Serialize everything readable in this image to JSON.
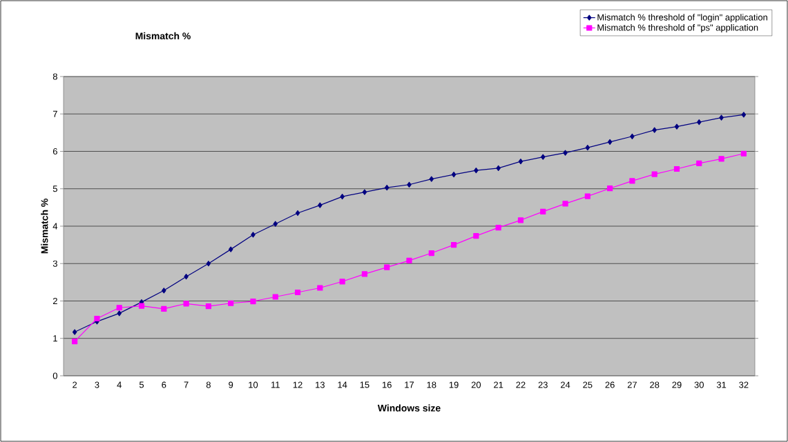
{
  "chart_data": {
    "type": "line",
    "title": "Mismatch %",
    "xlabel": "Windows size",
    "ylabel": "Mismatch %",
    "categories": [
      "2",
      "3",
      "4",
      "5",
      "6",
      "7",
      "8",
      "9",
      "10",
      "11",
      "12",
      "13",
      "14",
      "15",
      "16",
      "17",
      "18",
      "19",
      "20",
      "21",
      "22",
      "23",
      "24",
      "25",
      "26",
      "27",
      "28",
      "29",
      "30",
      "31",
      "32"
    ],
    "series": [
      {
        "name": "Mismatch % threshold of \"login\" application",
        "color": "#000080",
        "marker": "diamond",
        "values": [
          1.17,
          1.45,
          1.67,
          1.97,
          2.28,
          2.65,
          3.0,
          3.38,
          3.77,
          4.06,
          4.35,
          4.56,
          4.79,
          4.91,
          5.03,
          5.11,
          5.26,
          5.38,
          5.49,
          5.55,
          5.73,
          5.85,
          5.96,
          6.1,
          6.25,
          6.4,
          6.57,
          6.66,
          6.78,
          6.9,
          6.98
        ]
      },
      {
        "name": "Mismatch % threshold of \"ps\" application",
        "color": "#ff00ff",
        "marker": "square",
        "values": [
          0.92,
          1.53,
          1.82,
          1.87,
          1.79,
          1.93,
          1.86,
          1.94,
          1.99,
          2.11,
          2.23,
          2.35,
          2.52,
          2.72,
          2.9,
          3.08,
          3.28,
          3.5,
          3.74,
          3.96,
          4.16,
          4.39,
          4.6,
          4.8,
          5.01,
          5.21,
          5.39,
          5.53,
          5.68,
          5.8,
          5.94
        ]
      }
    ],
    "ylim": [
      0,
      8
    ],
    "yticks": [
      0,
      1,
      2,
      3,
      4,
      5,
      6,
      7,
      8
    ],
    "grid": "y",
    "legend": "top right",
    "line_style": "solid"
  }
}
